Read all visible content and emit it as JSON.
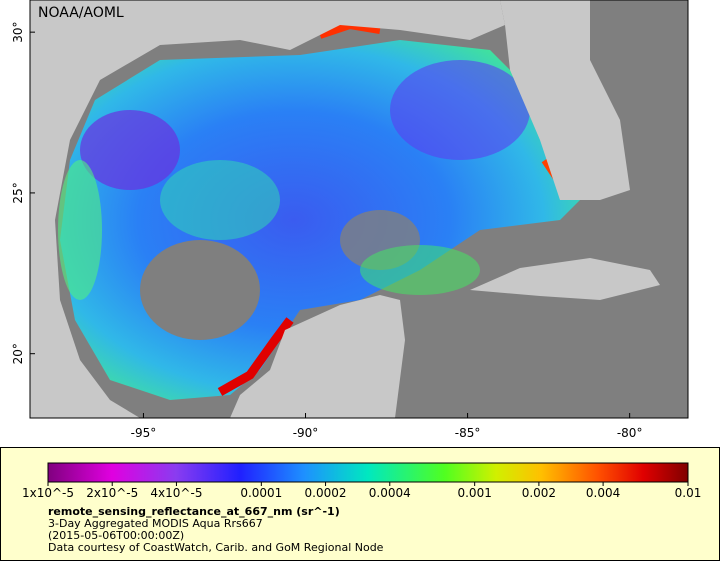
{
  "map": {
    "watermark": "NOAA/AOML",
    "xlim": [
      -98.5,
      -78.2
    ],
    "ylim": [
      18,
      31
    ],
    "lon_ticks": [
      {
        "value": -95,
        "label": "-95°"
      },
      {
        "value": -90,
        "label": "-90°"
      },
      {
        "value": -85,
        "label": "-85°"
      },
      {
        "value": -80,
        "label": "-80°"
      }
    ],
    "lat_ticks": [
      {
        "value": 20,
        "label": "20°"
      },
      {
        "value": 25,
        "label": "25°"
      },
      {
        "value": 30,
        "label": "30°"
      }
    ]
  },
  "colorbar": {
    "log_scale": true,
    "lim": [
      1e-05,
      0.01
    ],
    "ticks": [
      {
        "value": 1e-05,
        "label": "1x10^-5"
      },
      {
        "value": 2e-05,
        "label": "2x10^-5"
      },
      {
        "value": 4e-05,
        "label": "4x10^-5"
      },
      {
        "value": 0.0001,
        "label": "0.0001"
      },
      {
        "value": 0.0002,
        "label": "0.0002"
      },
      {
        "value": 0.0004,
        "label": "0.0004"
      },
      {
        "value": 0.001,
        "label": "0.001"
      },
      {
        "value": 0.002,
        "label": "0.002"
      },
      {
        "value": 0.004,
        "label": "0.004"
      },
      {
        "value": 0.01,
        "label": "0.01"
      }
    ]
  },
  "legend": {
    "variable": "remote_sensing_reflectance_at_667_nm (sr^-1)",
    "dataset": "3-Day Aggregated MODIS Aqua Rrs667",
    "time": "(2015-05-06T00:00:00Z)",
    "credit": "Data courtesy of CoastWatch, Carib. and GoM Regional Node"
  }
}
